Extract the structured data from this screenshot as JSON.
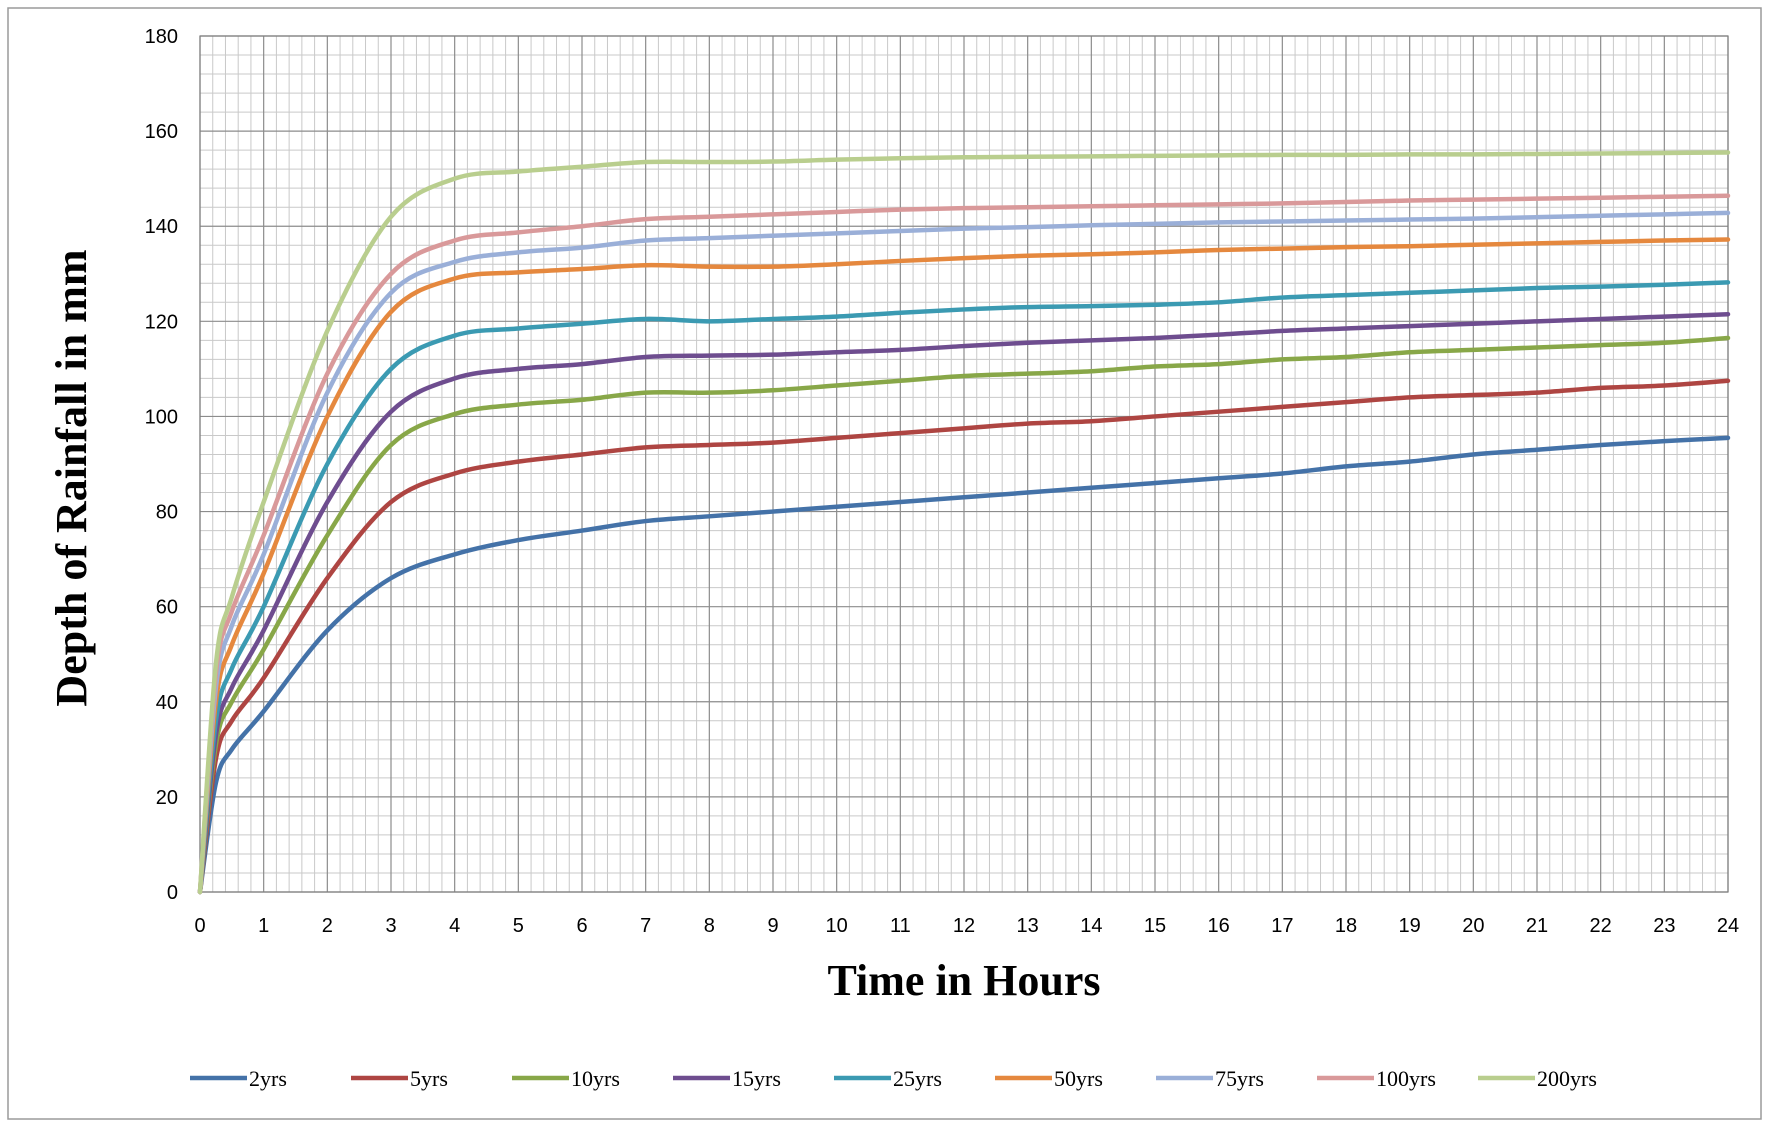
{
  "chart_data": {
    "type": "line",
    "title": "",
    "xlabel": "Time in Hours",
    "ylabel": "Depth of Rainfall in mm",
    "xlim": [
      0,
      24
    ],
    "ylim": [
      0,
      180
    ],
    "x_ticks": [
      0,
      1,
      2,
      3,
      4,
      5,
      6,
      7,
      8,
      9,
      10,
      11,
      12,
      13,
      14,
      15,
      16,
      17,
      18,
      19,
      20,
      21,
      22,
      23,
      24
    ],
    "y_ticks": [
      0,
      20,
      40,
      60,
      80,
      100,
      120,
      140,
      160,
      180
    ],
    "grid": true,
    "legend_position": "bottom",
    "x": [
      0,
      0.25,
      0.5,
      1,
      2,
      3,
      4,
      5,
      6,
      7,
      8,
      9,
      10,
      11,
      12,
      13,
      14,
      15,
      16,
      17,
      18,
      19,
      20,
      21,
      22,
      23,
      24
    ],
    "series": [
      {
        "name": "2yrs",
        "color": "#4472A8",
        "values": [
          0,
          23,
          30,
          38,
          55,
          66,
          71,
          74,
          76,
          78,
          79,
          80,
          81,
          82,
          83,
          84,
          85,
          86,
          87,
          88,
          89.5,
          90.5,
          92,
          93,
          94,
          94.8,
          95.5
        ]
      },
      {
        "name": "5yrs",
        "color": "#AE4542",
        "values": [
          0,
          28,
          36,
          45,
          66,
          82,
          88,
          90.5,
          92,
          93.5,
          94,
          94.5,
          95.5,
          96.5,
          97.5,
          98.5,
          99,
          100,
          101,
          102,
          103,
          104,
          104.5,
          105,
          106,
          106.5,
          107.5
        ]
      },
      {
        "name": "10yrs",
        "color": "#88A748",
        "values": [
          0,
          31,
          40,
          51,
          75,
          94,
          100.5,
          102.5,
          103.5,
          105,
          105,
          105.5,
          106.5,
          107.5,
          108.5,
          109,
          109.5,
          110.5,
          111,
          112,
          112.5,
          113.5,
          114,
          114.5,
          115,
          115.5,
          116.5
        ]
      },
      {
        "name": "15yrs",
        "color": "#6E4D8F",
        "values": [
          0,
          33,
          43,
          55,
          82,
          101,
          108,
          110,
          111,
          112.5,
          112.8,
          113,
          113.5,
          114,
          114.8,
          115.5,
          116,
          116.5,
          117.2,
          118,
          118.5,
          119,
          119.5,
          120,
          120.5,
          121,
          121.5
        ]
      },
      {
        "name": "25yrs",
        "color": "#3B9AB2",
        "values": [
          0,
          36,
          47,
          60,
          90,
          110,
          117,
          118.5,
          119.5,
          120.5,
          120,
          120.5,
          121,
          121.8,
          122.5,
          123,
          123.2,
          123.5,
          124,
          125,
          125.5,
          126,
          126.5,
          127,
          127.3,
          127.7,
          128.2
        ]
      },
      {
        "name": "50yrs",
        "color": "#E5883E",
        "values": [
          0,
          40,
          52,
          67,
          100,
          122,
          129,
          130.3,
          131,
          131.8,
          131.5,
          131.5,
          132,
          132.7,
          133.3,
          133.8,
          134.1,
          134.5,
          135,
          135.3,
          135.6,
          135.8,
          136.1,
          136.4,
          136.7,
          137,
          137.2
        ]
      },
      {
        "name": "75yrs",
        "color": "#9AAFD8",
        "values": [
          0,
          43,
          56,
          71,
          105,
          126,
          132.5,
          134.5,
          135.5,
          137,
          137.5,
          138,
          138.5,
          139,
          139.5,
          139.8,
          140.2,
          140.5,
          140.8,
          141,
          141.2,
          141.4,
          141.6,
          141.9,
          142.2,
          142.5,
          142.8
        ]
      },
      {
        "name": "100yrs",
        "color": "#D9999A",
        "values": [
          0,
          46,
          59,
          75,
          109,
          130,
          137,
          138.7,
          140,
          141.5,
          142,
          142.5,
          143,
          143.5,
          143.8,
          144,
          144.2,
          144.4,
          144.6,
          144.8,
          145.1,
          145.4,
          145.6,
          145.8,
          146,
          146.2,
          146.4
        ]
      },
      {
        "name": "200yrs",
        "color": "#B9CE8E",
        "values": [
          0,
          48,
          62,
          82,
          118,
          142,
          150,
          151.5,
          152.5,
          153.5,
          153.5,
          153.6,
          154,
          154.3,
          154.5,
          154.6,
          154.7,
          154.8,
          154.9,
          155,
          155,
          155.1,
          155.1,
          155.2,
          155.3,
          155.4,
          155.5
        ]
      }
    ]
  }
}
